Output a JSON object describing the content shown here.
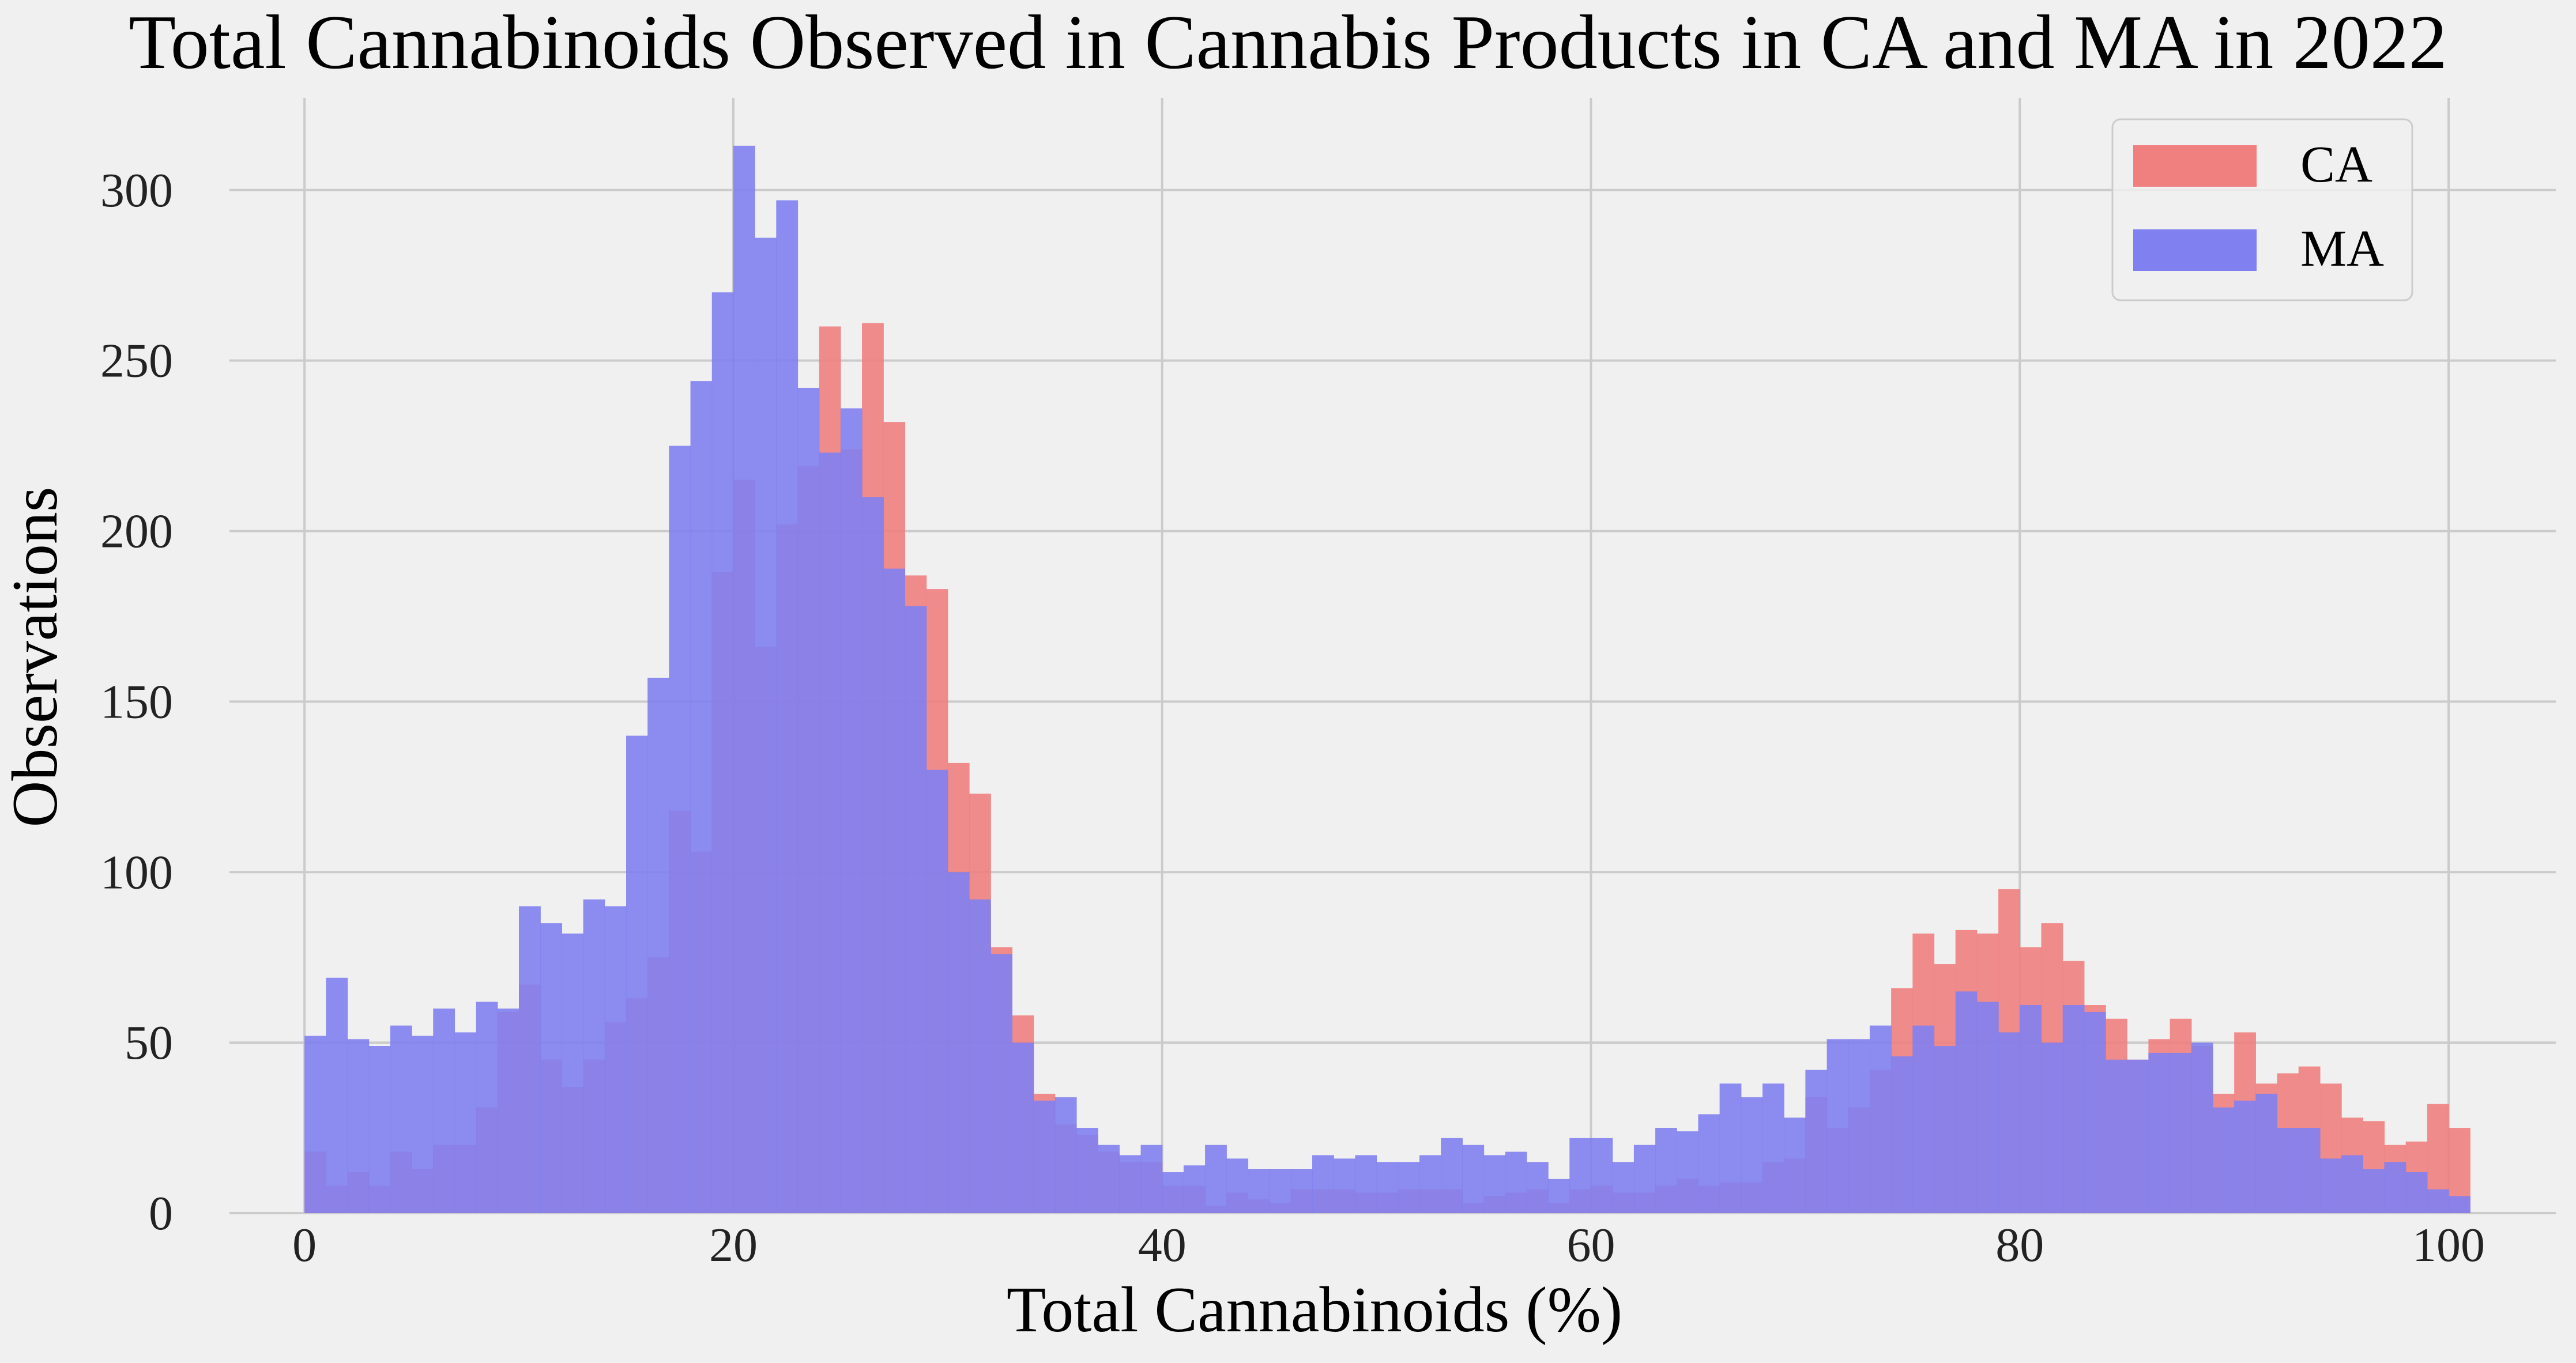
{
  "chart_data": {
    "type": "bar",
    "title": "Total Cannabinoids Observed in Cannabis Products in CA and MA in 2022",
    "xlabel": "Total Cannabinoids (%)",
    "ylabel": "Observations",
    "xlim": [
      -3.5,
      105
    ],
    "ylim": [
      0,
      327
    ],
    "bin_width": 1,
    "x_ticks": [
      0,
      20,
      40,
      60,
      80,
      100
    ],
    "y_ticks": [
      0,
      50,
      100,
      150,
      200,
      250,
      300
    ],
    "grid": true,
    "legend_position": "top-right",
    "series": [
      {
        "name": "CA",
        "color": "#f08080",
        "values": [
          18,
          8,
          12,
          8,
          18,
          13,
          20,
          20,
          31,
          59,
          67,
          45,
          37,
          45,
          56,
          63,
          75,
          118,
          106,
          188,
          215,
          166,
          202,
          219,
          260,
          224,
          261,
          232,
          187,
          183,
          132,
          123,
          78,
          58,
          35,
          26,
          23,
          18,
          15,
          15,
          8,
          8,
          2,
          6,
          4,
          3,
          7,
          7,
          7,
          6,
          6,
          7,
          7,
          7,
          3,
          5,
          6,
          7,
          3,
          7,
          8,
          6,
          6,
          8,
          10,
          8,
          9,
          9,
          15,
          16,
          34,
          25,
          31,
          42,
          66,
          82,
          73,
          83,
          82,
          95,
          78,
          85,
          74,
          61,
          57,
          45,
          51,
          57,
          49,
          35,
          53,
          38,
          41,
          43,
          38,
          28,
          27,
          20,
          21,
          32,
          25
        ]
      },
      {
        "name": "MA",
        "color": "#8080f0",
        "values": [
          52,
          69,
          51,
          49,
          55,
          52,
          60,
          53,
          62,
          60,
          90,
          85,
          82,
          92,
          90,
          140,
          157,
          225,
          244,
          270,
          313,
          286,
          297,
          242,
          223,
          236,
          210,
          189,
          178,
          130,
          100,
          92,
          76,
          50,
          33,
          34,
          25,
          20,
          17,
          20,
          12,
          14,
          20,
          16,
          13,
          13,
          13,
          17,
          16,
          17,
          15,
          15,
          17,
          22,
          20,
          17,
          18,
          15,
          10,
          22,
          22,
          15,
          20,
          25,
          24,
          29,
          38,
          34,
          38,
          28,
          42,
          51,
          51,
          55,
          46,
          55,
          49,
          65,
          62,
          53,
          61,
          50,
          61,
          59,
          45,
          45,
          47,
          47,
          50,
          31,
          33,
          35,
          25,
          25,
          16,
          17,
          13,
          15,
          12,
          7,
          5
        ]
      }
    ]
  }
}
